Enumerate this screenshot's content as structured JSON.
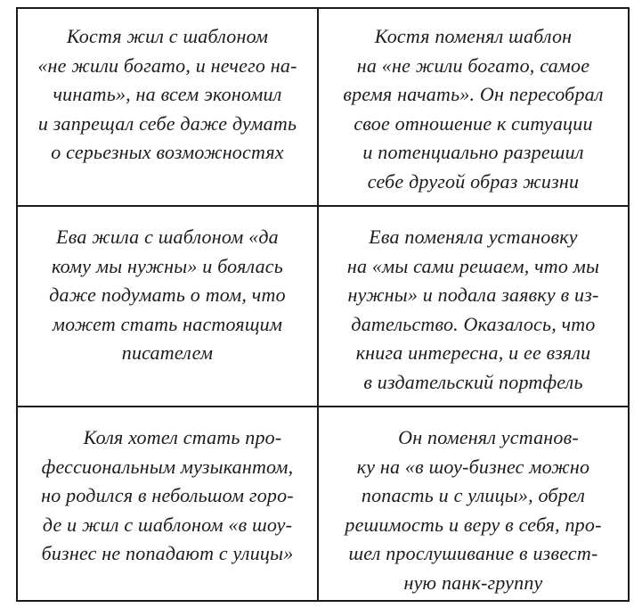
{
  "page": {
    "background": "#ffffff",
    "text_color": "#1c1c1c",
    "border_color": "#1a1a1a"
  },
  "table": {
    "rows": [
      {
        "before": "Костя жил с шаблоном\n«не жили богато, и нечего на-\nчинать», на всем экономил\nи запрещал себе даже думать\nо серьезных возможностях",
        "after": "Костя поменял шаблон\nна «не жили богато, самое\nвремя начать». Он пересобрал\nсвое отношение к ситуации\nи потенциально разрешил\nсебе другой образ жизни"
      },
      {
        "before": "Ева жила с шаблоном «да\nкому мы нужны» и боялась\nдаже подумать о том, что\nможет стать настоящим\nписателем",
        "after": "Ева поменяла установку\nна «мы сами решаем, что мы\nнужны» и подала заявку в из-\nдательство. Оказалось, что\nкнига интересна, и ее взяли\nв издательский портфель"
      },
      {
        "before": "Коля хотел стать про-\nфессиональным музыкантом,\nно родился в небольшом горо-\nде и жил с шаблоном «в шоу-\nбизнес не попадают с улицы»",
        "after": "Он поменял установ-\nку на «в шоу-бизнес можно\nпопасть и с улицы», обрел\nрешимость и веру в себя, про-\nшел прослушивание в извест-\nную панк-группу"
      }
    ]
  }
}
